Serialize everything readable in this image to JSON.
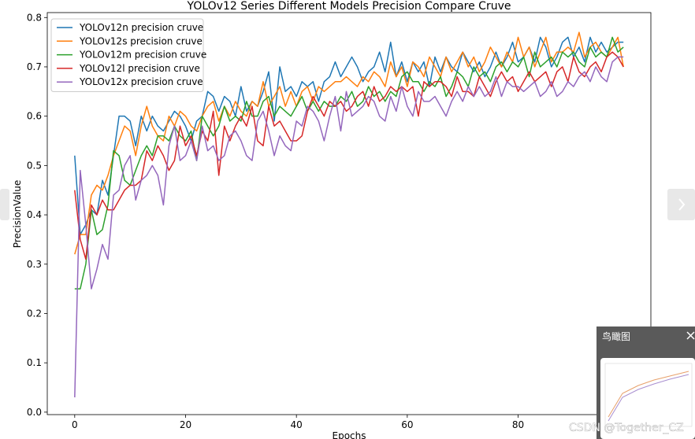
{
  "chart_data": {
    "type": "line",
    "title": "YOLOv12 Series Different Models Precision Compare Cruve",
    "xlabel": "Epochs",
    "ylabel": "PrecisionValue",
    "x": [
      0,
      1,
      2,
      3,
      4,
      5,
      6,
      7,
      8,
      9,
      10,
      11,
      12,
      13,
      14,
      15,
      16,
      17,
      18,
      19,
      20,
      21,
      22,
      23,
      24,
      25,
      26,
      27,
      28,
      29,
      30,
      31,
      32,
      33,
      34,
      35,
      36,
      37,
      38,
      39,
      40,
      41,
      42,
      43,
      44,
      45,
      46,
      47,
      48,
      49,
      50,
      51,
      52,
      53,
      54,
      55,
      56,
      57,
      58,
      59,
      60,
      61,
      62,
      63,
      64,
      65,
      66,
      67,
      68,
      69,
      70,
      71,
      72,
      73,
      74,
      75,
      76,
      77,
      78,
      79,
      80,
      81,
      82,
      83,
      84,
      85,
      86,
      87,
      88,
      89,
      90,
      91,
      92,
      93,
      94,
      95,
      96,
      97,
      98,
      99
    ],
    "series": [
      {
        "name": "YOLOv12n precision cruve",
        "color": "#1f77b4",
        "values": [
          0.52,
          0.36,
          0.38,
          0.41,
          0.4,
          0.47,
          0.44,
          0.52,
          0.6,
          0.6,
          0.59,
          0.54,
          0.6,
          0.57,
          0.6,
          0.58,
          0.57,
          0.59,
          0.61,
          0.6,
          0.58,
          0.55,
          0.59,
          0.6,
          0.65,
          0.64,
          0.61,
          0.64,
          0.63,
          0.6,
          0.66,
          0.61,
          0.63,
          0.62,
          0.65,
          0.69,
          0.59,
          0.7,
          0.65,
          0.66,
          0.64,
          0.67,
          0.66,
          0.67,
          0.63,
          0.67,
          0.68,
          0.71,
          0.68,
          0.7,
          0.72,
          0.7,
          0.67,
          0.69,
          0.7,
          0.73,
          0.69,
          0.75,
          0.68,
          0.71,
          0.67,
          0.71,
          0.69,
          0.71,
          0.66,
          0.72,
          0.69,
          0.72,
          0.7,
          0.69,
          0.73,
          0.71,
          0.69,
          0.71,
          0.68,
          0.7,
          0.73,
          0.7,
          0.72,
          0.75,
          0.71,
          0.72,
          0.74,
          0.71,
          0.76,
          0.74,
          0.7,
          0.72,
          0.75,
          0.76,
          0.72,
          0.74,
          0.71,
          0.76,
          0.73,
          0.75,
          0.73,
          0.74,
          0.75,
          0.75
        ]
      },
      {
        "name": "YOLOv12s precision cruve",
        "color": "#ff7f0e",
        "values": [
          0.32,
          0.36,
          0.36,
          0.44,
          0.46,
          0.45,
          0.48,
          0.52,
          0.55,
          0.58,
          0.57,
          0.52,
          0.58,
          0.62,
          0.58,
          0.56,
          0.55,
          0.6,
          0.58,
          0.61,
          0.6,
          0.58,
          0.57,
          0.6,
          0.62,
          0.63,
          0.59,
          0.62,
          0.6,
          0.63,
          0.61,
          0.6,
          0.63,
          0.62,
          0.67,
          0.62,
          0.64,
          0.66,
          0.62,
          0.65,
          0.62,
          0.65,
          0.66,
          0.63,
          0.66,
          0.65,
          0.66,
          0.67,
          0.67,
          0.68,
          0.67,
          0.66,
          0.68,
          0.67,
          0.69,
          0.68,
          0.66,
          0.71,
          0.68,
          0.7,
          0.66,
          0.71,
          0.7,
          0.68,
          0.72,
          0.7,
          0.68,
          0.72,
          0.69,
          0.71,
          0.73,
          0.7,
          0.72,
          0.69,
          0.71,
          0.74,
          0.72,
          0.7,
          0.73,
          0.71,
          0.76,
          0.72,
          0.74,
          0.7,
          0.73,
          0.76,
          0.71,
          0.73,
          0.73,
          0.74,
          0.73,
          0.77,
          0.72,
          0.74,
          0.75,
          0.73,
          0.72,
          0.74,
          0.76,
          0.7
        ]
      },
      {
        "name": "YOLOv12m precision cruve",
        "color": "#2ca02c",
        "values": [
          0.25,
          0.25,
          0.3,
          0.41,
          0.36,
          0.37,
          0.42,
          0.53,
          0.52,
          0.47,
          0.46,
          0.49,
          0.52,
          0.54,
          0.52,
          0.56,
          0.56,
          0.55,
          0.58,
          0.56,
          0.55,
          0.57,
          0.51,
          0.6,
          0.58,
          0.56,
          0.58,
          0.62,
          0.59,
          0.6,
          0.59,
          0.63,
          0.6,
          0.6,
          0.63,
          0.64,
          0.6,
          0.62,
          0.61,
          0.6,
          0.62,
          0.64,
          0.61,
          0.63,
          0.61,
          0.63,
          0.62,
          0.62,
          0.64,
          0.63,
          0.65,
          0.62,
          0.63,
          0.66,
          0.64,
          0.65,
          0.63,
          0.65,
          0.64,
          0.68,
          0.69,
          0.67,
          0.67,
          0.65,
          0.67,
          0.66,
          0.68,
          0.64,
          0.66,
          0.69,
          0.68,
          0.66,
          0.7,
          0.68,
          0.69,
          0.67,
          0.7,
          0.71,
          0.69,
          0.71,
          0.7,
          0.72,
          0.68,
          0.73,
          0.7,
          0.71,
          0.72,
          0.7,
          0.73,
          0.72,
          0.73,
          0.71,
          0.7,
          0.74,
          0.72,
          0.73,
          0.72,
          0.76,
          0.73,
          0.74
        ]
      },
      {
        "name": "YOLOv12l precision cruve",
        "color": "#d62728",
        "values": [
          0.45,
          0.35,
          0.31,
          0.42,
          0.4,
          0.43,
          0.41,
          0.41,
          0.43,
          0.45,
          0.46,
          0.46,
          0.47,
          0.53,
          0.51,
          0.54,
          0.52,
          0.49,
          0.51,
          0.58,
          0.54,
          0.56,
          0.52,
          0.57,
          0.55,
          0.61,
          0.48,
          0.58,
          0.55,
          0.58,
          0.6,
          0.58,
          0.62,
          0.55,
          0.54,
          0.62,
          0.58,
          0.59,
          0.57,
          0.55,
          0.55,
          0.56,
          0.61,
          0.64,
          0.62,
          0.6,
          0.63,
          0.62,
          0.63,
          0.61,
          0.62,
          0.64,
          0.65,
          0.62,
          0.66,
          0.63,
          0.64,
          0.66,
          0.65,
          0.66,
          0.65,
          0.66,
          0.6,
          0.67,
          0.66,
          0.67,
          0.67,
          0.66,
          0.64,
          0.68,
          0.65,
          0.65,
          0.64,
          0.68,
          0.66,
          0.64,
          0.67,
          0.69,
          0.67,
          0.68,
          0.65,
          0.67,
          0.69,
          0.67,
          0.68,
          0.69,
          0.66,
          0.69,
          0.7,
          0.67,
          0.72,
          0.69,
          0.68,
          0.7,
          0.71,
          0.69,
          0.72,
          0.73,
          0.72,
          0.7
        ]
      },
      {
        "name": "YOLOv12x precision cruve",
        "color": "#9467bd",
        "values": [
          0.03,
          0.49,
          0.38,
          0.25,
          0.29,
          0.34,
          0.31,
          0.44,
          0.45,
          0.5,
          0.52,
          0.43,
          0.47,
          0.48,
          0.5,
          0.48,
          0.42,
          0.54,
          0.58,
          0.51,
          0.52,
          0.55,
          0.51,
          0.58,
          0.53,
          0.54,
          0.51,
          0.52,
          0.56,
          0.57,
          0.55,
          0.52,
          0.51,
          0.59,
          0.61,
          0.57,
          0.52,
          0.56,
          0.54,
          0.53,
          0.59,
          0.58,
          0.62,
          0.61,
          0.59,
          0.55,
          0.6,
          0.64,
          0.57,
          0.65,
          0.6,
          0.61,
          0.62,
          0.64,
          0.63,
          0.6,
          0.59,
          0.64,
          0.61,
          0.66,
          0.62,
          0.6,
          0.65,
          0.63,
          0.63,
          0.64,
          0.62,
          0.6,
          0.63,
          0.65,
          0.63,
          0.66,
          0.64,
          0.66,
          0.64,
          0.65,
          0.68,
          0.64,
          0.67,
          0.66,
          0.66,
          0.65,
          0.66,
          0.67,
          0.64,
          0.65,
          0.67,
          0.64,
          0.65,
          0.67,
          0.66,
          0.68,
          0.69,
          0.67,
          0.7,
          0.68,
          0.67,
          0.71,
          0.72,
          0.72
        ]
      }
    ],
    "xlim": [
      -4.95,
      103.95
    ],
    "xticks": [
      0,
      20,
      40,
      60,
      80
    ],
    "ylim": [
      -0.005,
      0.81
    ],
    "yticks": [
      {
        "value": 0,
        "label": "0.0"
      },
      0.1,
      0.2,
      0.3,
      0.4,
      0.5,
      0.6,
      0.7,
      0.8
    ],
    "legend": "upper left",
    "grid": false
  },
  "ui": {
    "overview_title": "鸟瞰图",
    "watermark": "CSDN @Together_CZ"
  }
}
